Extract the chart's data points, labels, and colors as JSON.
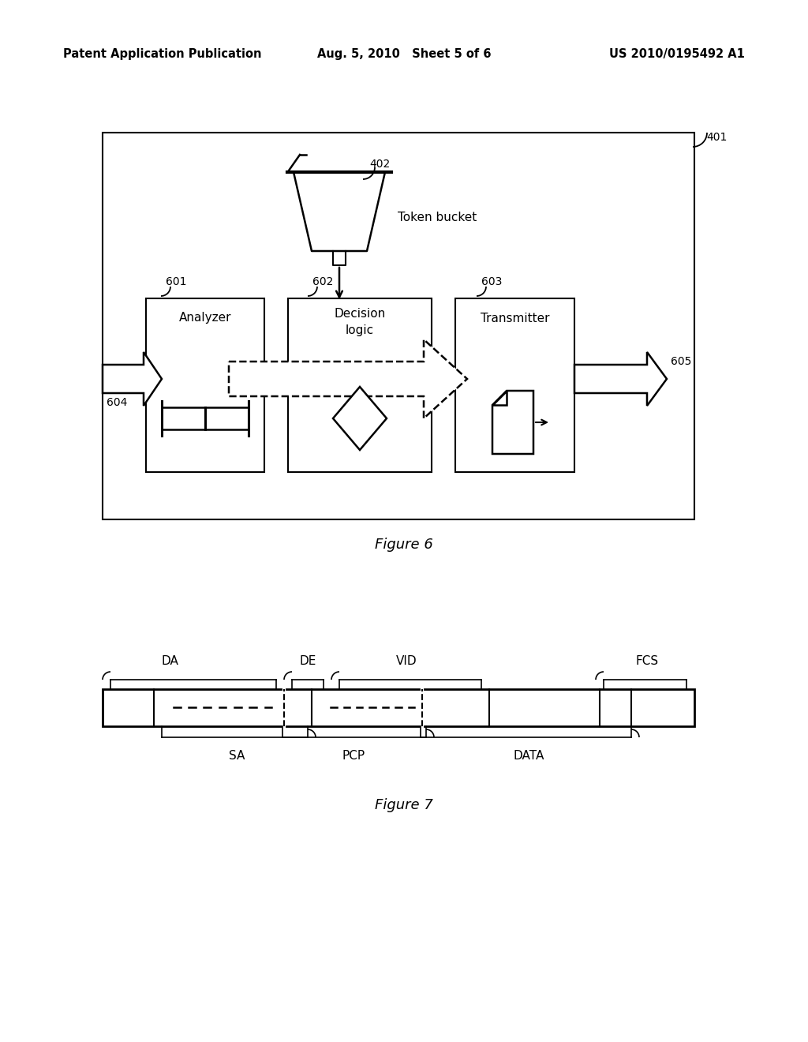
{
  "bg_color": "#ffffff",
  "header_left": "Patent Application Publication",
  "header_mid": "Aug. 5, 2010   Sheet 5 of 6",
  "header_right": "US 2010/0195492 A1",
  "fig6_label": "Figure 6",
  "fig7_label": "Figure 7",
  "label_401": "401",
  "label_402": "402",
  "label_601": "601",
  "label_602": "602",
  "label_603": "603",
  "label_604": "604",
  "label_605": "605",
  "token_bucket_label": "Token bucket",
  "analyzer_label": "Analyzer",
  "decision_label": "Decision\nlogic",
  "transmitter_label": "Transmitter"
}
